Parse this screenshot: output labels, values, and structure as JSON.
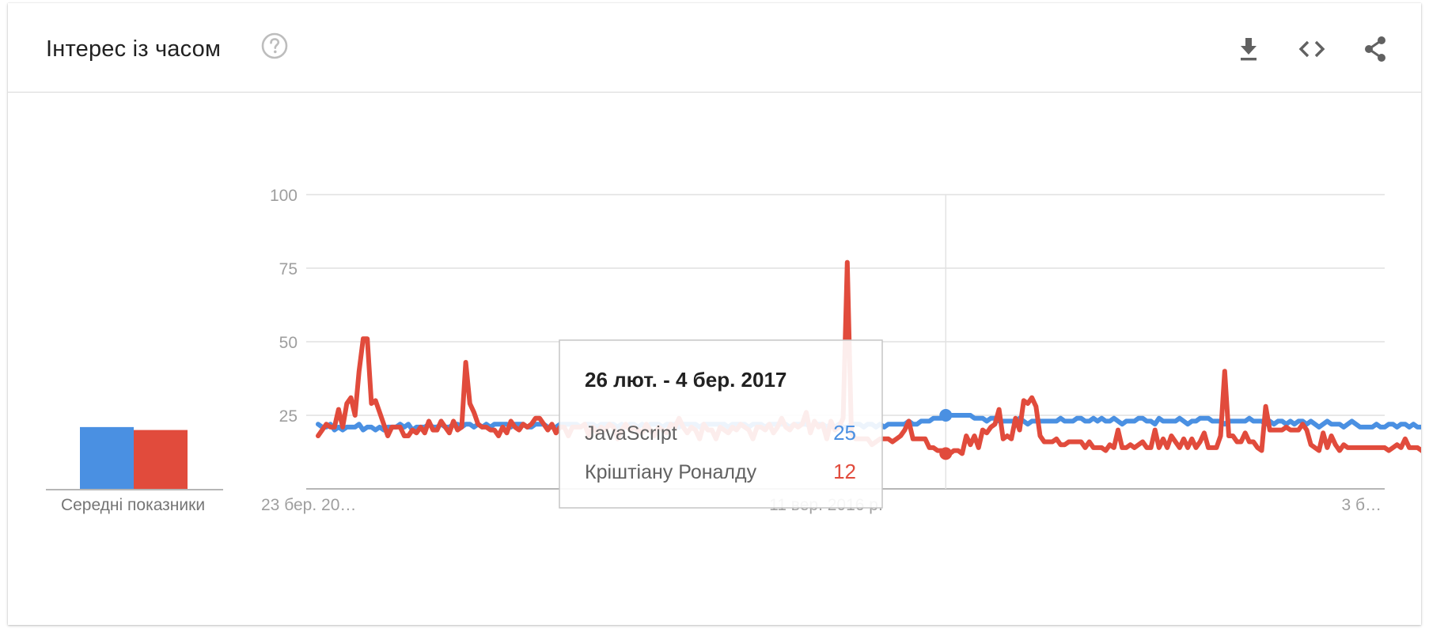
{
  "header": {
    "title": "Інтерес із часом",
    "icons": [
      "help-icon",
      "download-icon",
      "embed-code-icon",
      "share-icon"
    ]
  },
  "colors": {
    "series_a": "#4a90e2",
    "series_b": "#e14b3c",
    "grid": "#e0e0e0",
    "axis_text": "#9e9e9e"
  },
  "averages": {
    "label": "Середні показники",
    "values": [
      21,
      20
    ]
  },
  "tooltip": {
    "date": "26 лют. - 4 бер. 2017",
    "rows": [
      {
        "name": "JavaScript",
        "value": "25"
      },
      {
        "name": "Кріштіану Роналду",
        "value": "12"
      }
    ]
  },
  "chart_data": {
    "type": "line",
    "yticks": [
      "25",
      "50",
      "75",
      "100"
    ],
    "ylim": [
      0,
      100
    ],
    "x_tick_labels": [
      "23 бер. 20…",
      "11 вер. 2016 р.",
      "3 б…"
    ],
    "grid": true,
    "n_weeks": 261,
    "highlight_index": 153,
    "series": [
      {
        "name": "JavaScript",
        "values": [
          22,
          21,
          21,
          22,
          20,
          21,
          20,
          21,
          21,
          21,
          22,
          20,
          21,
          21,
          20,
          21,
          20,
          21,
          21,
          21,
          22,
          21,
          22,
          20,
          21,
          21,
          21,
          22,
          21,
          21,
          22,
          21,
          21,
          22,
          22,
          21,
          22,
          22,
          21,
          22,
          21,
          22,
          21,
          22,
          22,
          22,
          22,
          21,
          22,
          22,
          22,
          21,
          21,
          22,
          22,
          22,
          21,
          21,
          21,
          22,
          22,
          22,
          22,
          22,
          21,
          22,
          22,
          22,
          21,
          22,
          22,
          22,
          22,
          21,
          22,
          21,
          22,
          22,
          21,
          22,
          21,
          22,
          22,
          22,
          21,
          22,
          22,
          22,
          21,
          22,
          22,
          22,
          22,
          21,
          22,
          22,
          22,
          22,
          22,
          22,
          21,
          22,
          22,
          22,
          22,
          21,
          22,
          22,
          22,
          21,
          22,
          22,
          22,
          22,
          22,
          21,
          22,
          22,
          22,
          22,
          21,
          22,
          22,
          22,
          21,
          22,
          21,
          22,
          21,
          21,
          22,
          22,
          22,
          21,
          22,
          22,
          21,
          22,
          21,
          22,
          22,
          22,
          22,
          22,
          23,
          22,
          22,
          23,
          23,
          23,
          24,
          24,
          24,
          25,
          25,
          25,
          25,
          25,
          25,
          25,
          24,
          24,
          24,
          23,
          24,
          24,
          23,
          23,
          23,
          23,
          23,
          24,
          23,
          22,
          23,
          23,
          23,
          23,
          23,
          23,
          23,
          24,
          23,
          23,
          23,
          24,
          24,
          23,
          23,
          24,
          23,
          24,
          23,
          23,
          24,
          23,
          22,
          23,
          23,
          23,
          24,
          24,
          23,
          23,
          22,
          24,
          23,
          23,
          23,
          23,
          24,
          23,
          22,
          23,
          23,
          24,
          24,
          24,
          23,
          23,
          23,
          22,
          23,
          23,
          23,
          23,
          23,
          24,
          23,
          23,
          23,
          22,
          23,
          22,
          23,
          23,
          22,
          23,
          22,
          23,
          23,
          22,
          23,
          22,
          21,
          22,
          23,
          22,
          22,
          22,
          21,
          22,
          23,
          22,
          21,
          21,
          21,
          21,
          22,
          21,
          21,
          22,
          22,
          21,
          22,
          22,
          21,
          22,
          21,
          21,
          21
        ]
      },
      {
        "name": "Кріштіану Роналду",
        "values": [
          18,
          20,
          22,
          21,
          21,
          27,
          21,
          29,
          31,
          25,
          40,
          51,
          51,
          29,
          30,
          26,
          22,
          18,
          21,
          21,
          21,
          18,
          18,
          20,
          19,
          21,
          19,
          23,
          20,
          20,
          23,
          21,
          19,
          23,
          20,
          21,
          43,
          29,
          26,
          22,
          21,
          21,
          20,
          20,
          18,
          21,
          19,
          23,
          21,
          20,
          22,
          21,
          22,
          24,
          24,
          22,
          20,
          22,
          19,
          21,
          21,
          18,
          21,
          21,
          21,
          22,
          18,
          21,
          19,
          21,
          20,
          22,
          21,
          17,
          20,
          22,
          20,
          21,
          20,
          19,
          22,
          20,
          18,
          21,
          20,
          19,
          22,
          21,
          24,
          21,
          19,
          21,
          20,
          17,
          22,
          20,
          20,
          17,
          21,
          20,
          19,
          21,
          20,
          22,
          21,
          20,
          17,
          21,
          21,
          20,
          22,
          19,
          21,
          24,
          21,
          20,
          22,
          21,
          22,
          26,
          19,
          23,
          21,
          22,
          17,
          23,
          20,
          21,
          24,
          77,
          19,
          17,
          17,
          17,
          17,
          15,
          16,
          17,
          17,
          17,
          16,
          17,
          18,
          20,
          23,
          17,
          17,
          17,
          17,
          14,
          14,
          13,
          13,
          12,
          12,
          13,
          13,
          12,
          18,
          15,
          18,
          14,
          20,
          19,
          21,
          22,
          27,
          17,
          18,
          17,
          24,
          20,
          30,
          29,
          31,
          28,
          18,
          16,
          16,
          16,
          17,
          15,
          15,
          16,
          16,
          16,
          16,
          14,
          16,
          14,
          14,
          14,
          13,
          15,
          14,
          20,
          14,
          14,
          15,
          14,
          15,
          16,
          14,
          14,
          20,
          14,
          17,
          14,
          18,
          16,
          14,
          17,
          14,
          17,
          14,
          16,
          19,
          14,
          14,
          14,
          18,
          40,
          18,
          18,
          16,
          16,
          19,
          16,
          16,
          14,
          13,
          28,
          20,
          20,
          20,
          20,
          21,
          20,
          20,
          20,
          22,
          20,
          15,
          14,
          13,
          19,
          14,
          18,
          15,
          13,
          15,
          14,
          14,
          14,
          14,
          14,
          14,
          14,
          14,
          14,
          14,
          13,
          14,
          15,
          14,
          17,
          14,
          14,
          14,
          13,
          12,
          13,
          12,
          13,
          28,
          18
        ]
      }
    ]
  }
}
